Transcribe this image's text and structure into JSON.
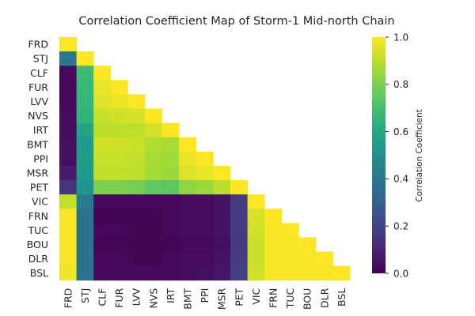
{
  "chart_data": {
    "type": "heatmap",
    "title": "Correlation Coefficient Map of Storm-1 Mid-north Chain",
    "row_labels": [
      "FRD",
      "STJ",
      "CLF",
      "FUR",
      "LVV",
      "NVS",
      "IRT",
      "BMT",
      "PPI",
      "MSR",
      "PET",
      "VIC",
      "FRN",
      "TUC",
      "BOU",
      "DLR",
      "BSL"
    ],
    "col_labels": [
      "FRD",
      "STJ",
      "CLF",
      "FUR",
      "LVV",
      "NVS",
      "IRT",
      "BMT",
      "PPI",
      "MSR",
      "PET",
      "VIC",
      "FRN",
      "TUC",
      "BOU",
      "DLR",
      "BSL"
    ],
    "mask": "upper-triangle",
    "values": [
      [
        1.0
      ],
      [
        0.4,
        1.0
      ],
      [
        0.02,
        0.68,
        1.0
      ],
      [
        0.02,
        0.67,
        0.97,
        1.0
      ],
      [
        0.02,
        0.66,
        0.95,
        0.97,
        1.0
      ],
      [
        0.03,
        0.65,
        0.92,
        0.93,
        0.94,
        1.0
      ],
      [
        0.03,
        0.58,
        0.9,
        0.9,
        0.9,
        0.94,
        1.0
      ],
      [
        0.04,
        0.54,
        0.93,
        0.93,
        0.92,
        0.88,
        0.87,
        1.0
      ],
      [
        0.04,
        0.55,
        0.92,
        0.92,
        0.91,
        0.87,
        0.86,
        0.97,
        1.0
      ],
      [
        0.07,
        0.54,
        0.91,
        0.91,
        0.9,
        0.86,
        0.85,
        0.95,
        0.97,
        1.0
      ],
      [
        0.15,
        0.52,
        0.8,
        0.8,
        0.79,
        0.75,
        0.74,
        0.83,
        0.85,
        0.9,
        1.0
      ],
      [
        0.91,
        0.42,
        0.02,
        0.02,
        0.02,
        0.02,
        0.02,
        0.03,
        0.03,
        0.05,
        0.18,
        1.0
      ],
      [
        0.99,
        0.38,
        0.01,
        0.01,
        0.01,
        0.01,
        0.02,
        0.03,
        0.03,
        0.05,
        0.18,
        0.94,
        1.0
      ],
      [
        0.99,
        0.38,
        0.02,
        0.02,
        0.01,
        0.01,
        0.02,
        0.03,
        0.03,
        0.05,
        0.18,
        0.93,
        0.99,
        1.0
      ],
      [
        0.99,
        0.38,
        0.01,
        0.01,
        0.01,
        0.01,
        0.01,
        0.02,
        0.02,
        0.04,
        0.17,
        0.92,
        0.99,
        0.99,
        1.0
      ],
      [
        0.99,
        0.38,
        0.02,
        0.02,
        0.01,
        0.01,
        0.02,
        0.03,
        0.03,
        0.05,
        0.18,
        0.92,
        0.99,
        0.99,
        0.99,
        1.0
      ],
      [
        0.98,
        0.38,
        0.02,
        0.02,
        0.02,
        0.02,
        0.02,
        0.03,
        0.04,
        0.06,
        0.19,
        0.93,
        0.99,
        0.99,
        0.99,
        0.99,
        1.0
      ]
    ],
    "colormap": "viridis",
    "colorbar": {
      "label": "Correlation Coefficient",
      "range": [
        0.0,
        1.0
      ],
      "ticks": [
        "0.0",
        "0.2",
        "0.4",
        "0.6",
        "0.8",
        "1.0"
      ]
    },
    "grid": false
  }
}
